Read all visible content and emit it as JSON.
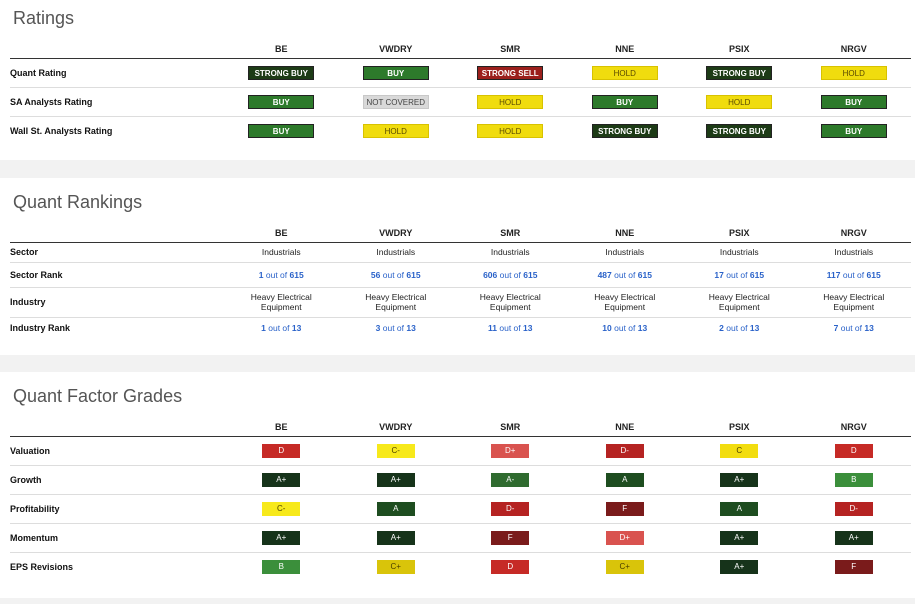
{
  "columns": [
    "BE",
    "VWDRY",
    "SMR",
    "NNE",
    "PSIX",
    "NRGV"
  ],
  "ratings": {
    "title": "Ratings",
    "rows": [
      {
        "label": "Quant Rating",
        "values": [
          {
            "text": "STRONG BUY",
            "class": "sb"
          },
          {
            "text": "BUY",
            "class": "b"
          },
          {
            "text": "STRONG SELL",
            "class": "ss"
          },
          {
            "text": "HOLD",
            "class": "h"
          },
          {
            "text": "STRONG BUY",
            "class": "sb"
          },
          {
            "text": "HOLD",
            "class": "h"
          }
        ]
      },
      {
        "label": "SA Analysts Rating",
        "values": [
          {
            "text": "BUY",
            "class": "b"
          },
          {
            "text": "NOT COVERED",
            "class": "nc"
          },
          {
            "text": "HOLD",
            "class": "h"
          },
          {
            "text": "BUY",
            "class": "b"
          },
          {
            "text": "HOLD",
            "class": "h"
          },
          {
            "text": "BUY",
            "class": "b"
          }
        ]
      },
      {
        "label": "Wall St. Analysts Rating",
        "values": [
          {
            "text": "BUY",
            "class": "b"
          },
          {
            "text": "HOLD",
            "class": "h"
          },
          {
            "text": "HOLD",
            "class": "h"
          },
          {
            "text": "STRONG BUY",
            "class": "sb"
          },
          {
            "text": "STRONG BUY",
            "class": "sb"
          },
          {
            "text": "BUY",
            "class": "b"
          }
        ]
      }
    ]
  },
  "rankings": {
    "title": "Quant Rankings",
    "rows": [
      {
        "label": "Sector",
        "type": "text",
        "values": [
          "Industrials",
          "Industrials",
          "Industrials",
          "Industrials",
          "Industrials",
          "Industrials"
        ]
      },
      {
        "label": "Sector Rank",
        "type": "rank",
        "values": [
          {
            "rank": "1",
            "of": " out of ",
            "total": "615"
          },
          {
            "rank": "56",
            "of": " out of ",
            "total": "615"
          },
          {
            "rank": "606",
            "of": " out of ",
            "total": "615"
          },
          {
            "rank": "487",
            "of": " out of ",
            "total": "615"
          },
          {
            "rank": "17",
            "of": " out of ",
            "total": "615"
          },
          {
            "rank": "117",
            "of": " out of ",
            "total": "615"
          }
        ]
      },
      {
        "label": "Industry",
        "type": "twoline",
        "values": [
          [
            "Heavy Electrical",
            "Equipment"
          ],
          [
            "Heavy Electrical",
            "Equipment"
          ],
          [
            "Heavy Electrical",
            "Equipment"
          ],
          [
            "Heavy Electrical",
            "Equipment"
          ],
          [
            "Heavy Electrical",
            "Equipment"
          ],
          [
            "Heavy Electrical",
            "Equipment"
          ]
        ]
      },
      {
        "label": "Industry Rank",
        "type": "rank",
        "values": [
          {
            "rank": "1",
            "of": " out of ",
            "total": "13"
          },
          {
            "rank": "3",
            "of": " out of ",
            "total": "13"
          },
          {
            "rank": "11",
            "of": " out of ",
            "total": "13"
          },
          {
            "rank": "10",
            "of": " out of ",
            "total": "13"
          },
          {
            "rank": "2",
            "of": " out of ",
            "total": "13"
          },
          {
            "rank": "7",
            "of": " out of ",
            "total": "13"
          }
        ]
      }
    ]
  },
  "grades": {
    "title": "Quant Factor Grades",
    "colors": {
      "A+": "#16331a",
      "A": "#1e4d20",
      "A-": "#2f6b2f",
      "B": "#3b8f3b",
      "C+": "#d9c40a",
      "C": "#f2dd0f",
      "C-": "#f7e91b",
      "D+": "#d9534f",
      "D": "#c62a26",
      "D-": "#b52322",
      "F": "#7a1b1b"
    },
    "text_colors": {
      "C+": "#4a3f00",
      "C": "#4a3f00",
      "C-": "#4a3f00"
    },
    "rows": [
      {
        "label": "Valuation",
        "values": [
          "D",
          "C-",
          "D+",
          "D-",
          "C",
          "D"
        ]
      },
      {
        "label": "Growth",
        "values": [
          "A+",
          "A+",
          "A-",
          "A",
          "A+",
          "B"
        ]
      },
      {
        "label": "Profitability",
        "values": [
          "C-",
          "A",
          "D-",
          "F",
          "A",
          "D-"
        ]
      },
      {
        "label": "Momentum",
        "values": [
          "A+",
          "A+",
          "F",
          "D+",
          "A+",
          "A+"
        ]
      },
      {
        "label": "EPS Revisions",
        "values": [
          "B",
          "C+",
          "D",
          "C+",
          "A+",
          "F"
        ]
      }
    ]
  }
}
